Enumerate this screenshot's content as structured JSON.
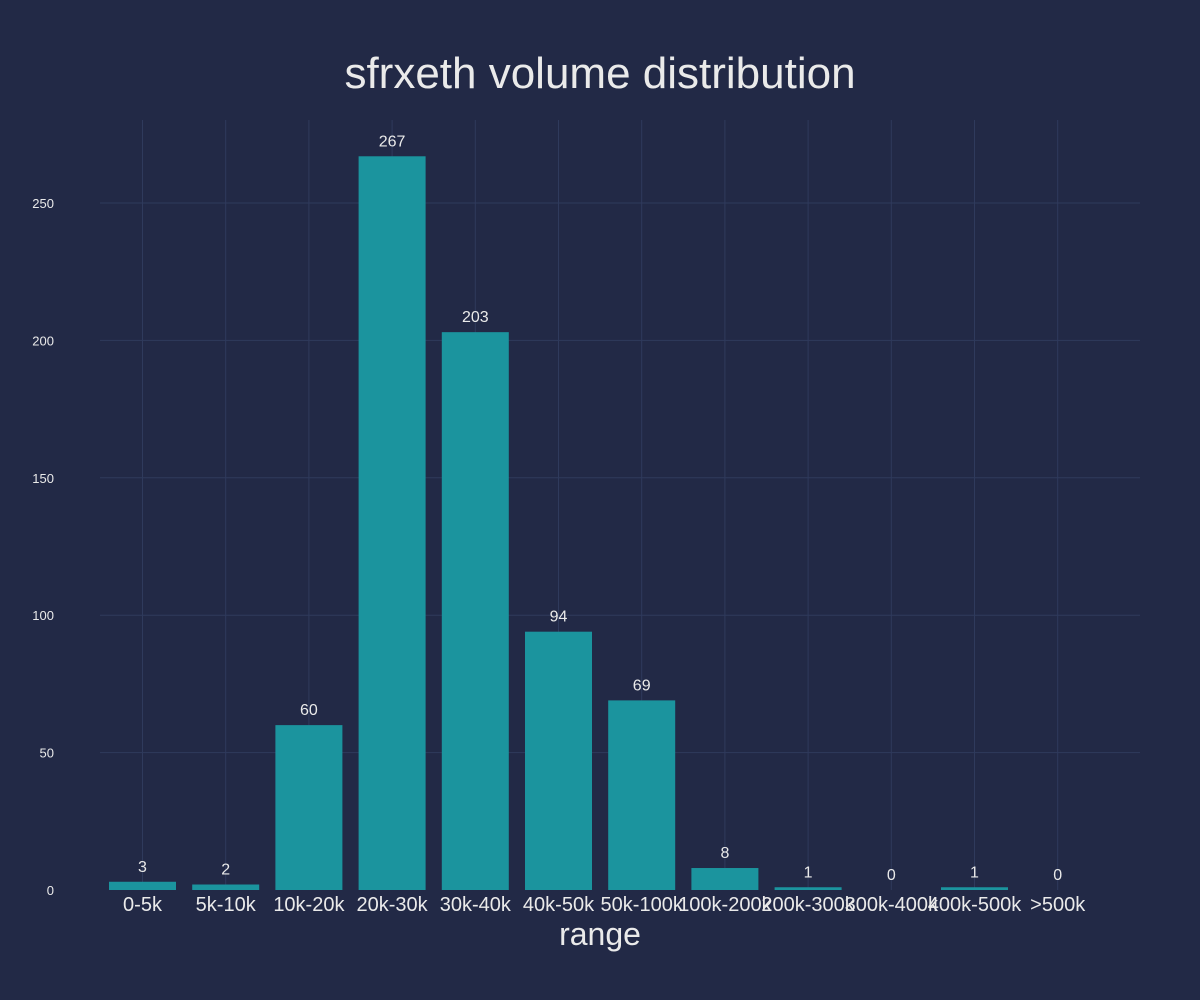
{
  "chart_data": {
    "type": "bar",
    "title": "sfrxeth volume distribution",
    "xlabel": "range",
    "ylabel": "",
    "categories": [
      "0-5k",
      "5k-10k",
      "10k-20k",
      "20k-30k",
      "30k-40k",
      "40k-50k",
      "50k-100k",
      "100k-200k",
      "200k-300k",
      "300k-400k",
      "400k-500k",
      ">500k"
    ],
    "values": [
      3,
      2,
      60,
      267,
      203,
      94,
      69,
      8,
      1,
      0,
      1,
      0
    ],
    "ylim": [
      0,
      280
    ],
    "yticks": [
      0,
      50,
      100,
      150,
      200,
      250
    ],
    "grid": true,
    "colors": {
      "bar": "#1b949e",
      "background": "#222946",
      "grid": "#2f3a5c",
      "text": "#eaeaea"
    }
  }
}
